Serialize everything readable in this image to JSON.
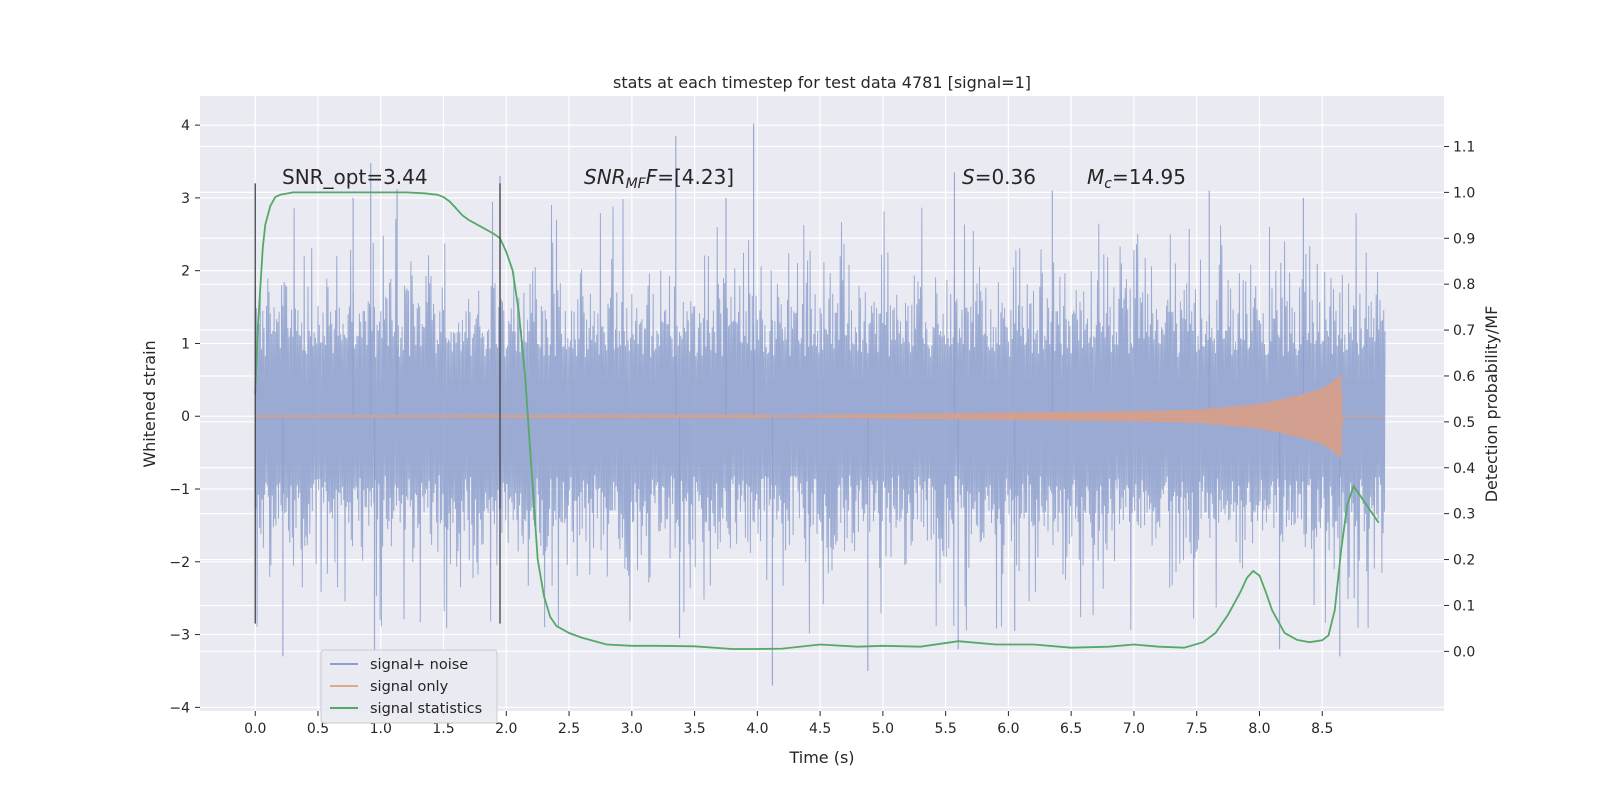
{
  "chart_data": {
    "type": "line",
    "title": "stats at each timestep for test data 4781 [signal=1]",
    "xlabel": "Time (s)",
    "ylabel": "Whitened strain",
    "y2label": "Detection probability/MF",
    "xlim": [
      -0.44,
      9.47
    ],
    "ylim": [
      -4.05,
      4.4
    ],
    "y2lim": [
      -0.13,
      1.21
    ],
    "xticks": [
      0.0,
      0.5,
      1.0,
      1.5,
      2.0,
      2.5,
      3.0,
      3.5,
      4.0,
      4.5,
      5.0,
      5.5,
      6.0,
      6.5,
      7.0,
      7.5,
      8.0,
      8.5
    ],
    "xtick_labels": [
      "0.0",
      "0.5",
      "1.0",
      "1.5",
      "2.0",
      "2.5",
      "3.0",
      "3.5",
      "4.0",
      "4.5",
      "5.0",
      "5.5",
      "6.0",
      "6.5",
      "7.0",
      "7.5",
      "8.0",
      "8.5"
    ],
    "yticks": [
      4,
      3,
      2,
      1,
      0,
      -1,
      -2,
      -3,
      -4
    ],
    "ytick_labels": [
      "4",
      "3",
      "2",
      "1",
      "0",
      "−1",
      "−2",
      "−3",
      "−4"
    ],
    "y2ticks": [
      1.1,
      1.0,
      0.9,
      0.8,
      0.7,
      0.6,
      0.5,
      0.4,
      0.3,
      0.2,
      0.1,
      0.0
    ],
    "y2tick_labels": [
      "1.1",
      "1.0",
      "0.9",
      "0.8",
      "0.7",
      "0.6",
      "0.5",
      "0.4",
      "0.3",
      "0.2",
      "0.1",
      "0.0"
    ],
    "grid": true,
    "legend_position": "lower-left",
    "legend": [
      {
        "name": "signal+ noise",
        "color": "#8c9fcc"
      },
      {
        "name": "signal only",
        "color": "#e0a88c"
      },
      {
        "name": "signal statistics",
        "color": "#55a868"
      }
    ],
    "annotations": {
      "snr_opt": "SNR_opt=3.44",
      "snr_mf_main": "SNR",
      "snr_mf_sub": "MF",
      "snr_mf_rest": "=[4.23]",
      "s_var": "S",
      "s_rest": "=0.36",
      "mc_var": "M",
      "mc_sub": "c",
      "mc_rest": "=14.95"
    },
    "vlines_x": [
      0.0,
      1.95
    ],
    "vlines_y_range": [
      -2.85,
      3.2
    ],
    "noise": {
      "x_range": [
        0.0,
        9.0
      ],
      "core_amplitude": 1.35,
      "typical_peak_range": [
        1.4,
        2.6
      ],
      "spikes": [
        {
          "x": 0.92,
          "y": 3.48
        },
        {
          "x": 0.78,
          "y": 3.0
        },
        {
          "x": 1.13,
          "y": 3.12
        },
        {
          "x": 1.95,
          "y": 3.3
        },
        {
          "x": 3.35,
          "y": 3.85
        },
        {
          "x": 3.97,
          "y": 4.02
        },
        {
          "x": 3.75,
          "y": 3.0
        },
        {
          "x": 5.57,
          "y": 3.35
        },
        {
          "x": 6.35,
          "y": 3.1
        },
        {
          "x": 7.6,
          "y": 3.1
        },
        {
          "x": 8.35,
          "y": 3.0
        },
        {
          "x": 0.22,
          "y": -3.3
        },
        {
          "x": 0.95,
          "y": -3.25
        },
        {
          "x": 3.38,
          "y": -3.05
        },
        {
          "x": 4.12,
          "y": -3.7
        },
        {
          "x": 4.88,
          "y": -3.5
        },
        {
          "x": 5.6,
          "y": -3.2
        },
        {
          "x": 6.05,
          "y": -2.95
        },
        {
          "x": 8.16,
          "y": -3.2
        },
        {
          "x": 8.64,
          "y": -3.3
        }
      ]
    },
    "signal_only": {
      "x_range": [
        0.0,
        9.0
      ],
      "envelope": [
        {
          "t": 0.0,
          "amp": 0.005
        },
        {
          "t": 4.0,
          "amp": 0.01
        },
        {
          "t": 5.0,
          "amp": 0.03
        },
        {
          "t": 6.0,
          "amp": 0.05
        },
        {
          "t": 7.0,
          "amp": 0.07
        },
        {
          "t": 7.5,
          "amp": 0.09
        },
        {
          "t": 8.0,
          "amp": 0.17
        },
        {
          "t": 8.3,
          "amp": 0.28
        },
        {
          "t": 8.5,
          "amp": 0.38
        },
        {
          "t": 8.6,
          "amp": 0.5
        },
        {
          "t": 8.65,
          "amp": 0.58
        },
        {
          "t": 8.66,
          "amp": 0.0
        },
        {
          "t": 9.0,
          "amp": 0.0
        }
      ]
    },
    "signal_statistics": {
      "x": [
        0.0,
        0.02,
        0.06,
        0.08,
        0.12,
        0.16,
        0.2,
        0.3,
        0.5,
        0.8,
        1.0,
        1.2,
        1.35,
        1.45,
        1.5,
        1.55,
        1.6,
        1.65,
        1.7,
        1.8,
        1.9,
        1.95,
        2.0,
        2.05,
        2.1,
        2.15,
        2.2,
        2.25,
        2.3,
        2.35,
        2.4,
        2.5,
        2.6,
        2.8,
        3.0,
        3.2,
        3.5,
        3.8,
        4.0,
        4.2,
        4.5,
        4.8,
        5.0,
        5.3,
        5.6,
        5.9,
        6.2,
        6.5,
        6.8,
        7.0,
        7.2,
        7.4,
        7.55,
        7.65,
        7.75,
        7.85,
        7.9,
        7.95,
        8.0,
        8.05,
        8.1,
        8.2,
        8.3,
        8.4,
        8.5,
        8.55,
        8.6,
        8.65,
        8.7,
        8.75,
        8.8,
        8.85,
        8.9,
        8.95
      ],
      "y": [
        0.56,
        0.7,
        0.88,
        0.93,
        0.97,
        0.99,
        0.995,
        1.0,
        1.0,
        1.0,
        1.0,
        1.0,
        0.998,
        0.995,
        0.99,
        0.98,
        0.965,
        0.95,
        0.94,
        0.925,
        0.91,
        0.9,
        0.87,
        0.83,
        0.74,
        0.6,
        0.4,
        0.2,
        0.12,
        0.075,
        0.055,
        0.04,
        0.03,
        0.015,
        0.012,
        0.012,
        0.011,
        0.005,
        0.005,
        0.006,
        0.015,
        0.01,
        0.012,
        0.01,
        0.022,
        0.015,
        0.015,
        0.008,
        0.01,
        0.015,
        0.01,
        0.008,
        0.02,
        0.04,
        0.08,
        0.13,
        0.16,
        0.175,
        0.165,
        0.13,
        0.09,
        0.04,
        0.025,
        0.02,
        0.024,
        0.035,
        0.09,
        0.22,
        0.32,
        0.36,
        0.34,
        0.32,
        0.3,
        0.28
      ]
    }
  }
}
